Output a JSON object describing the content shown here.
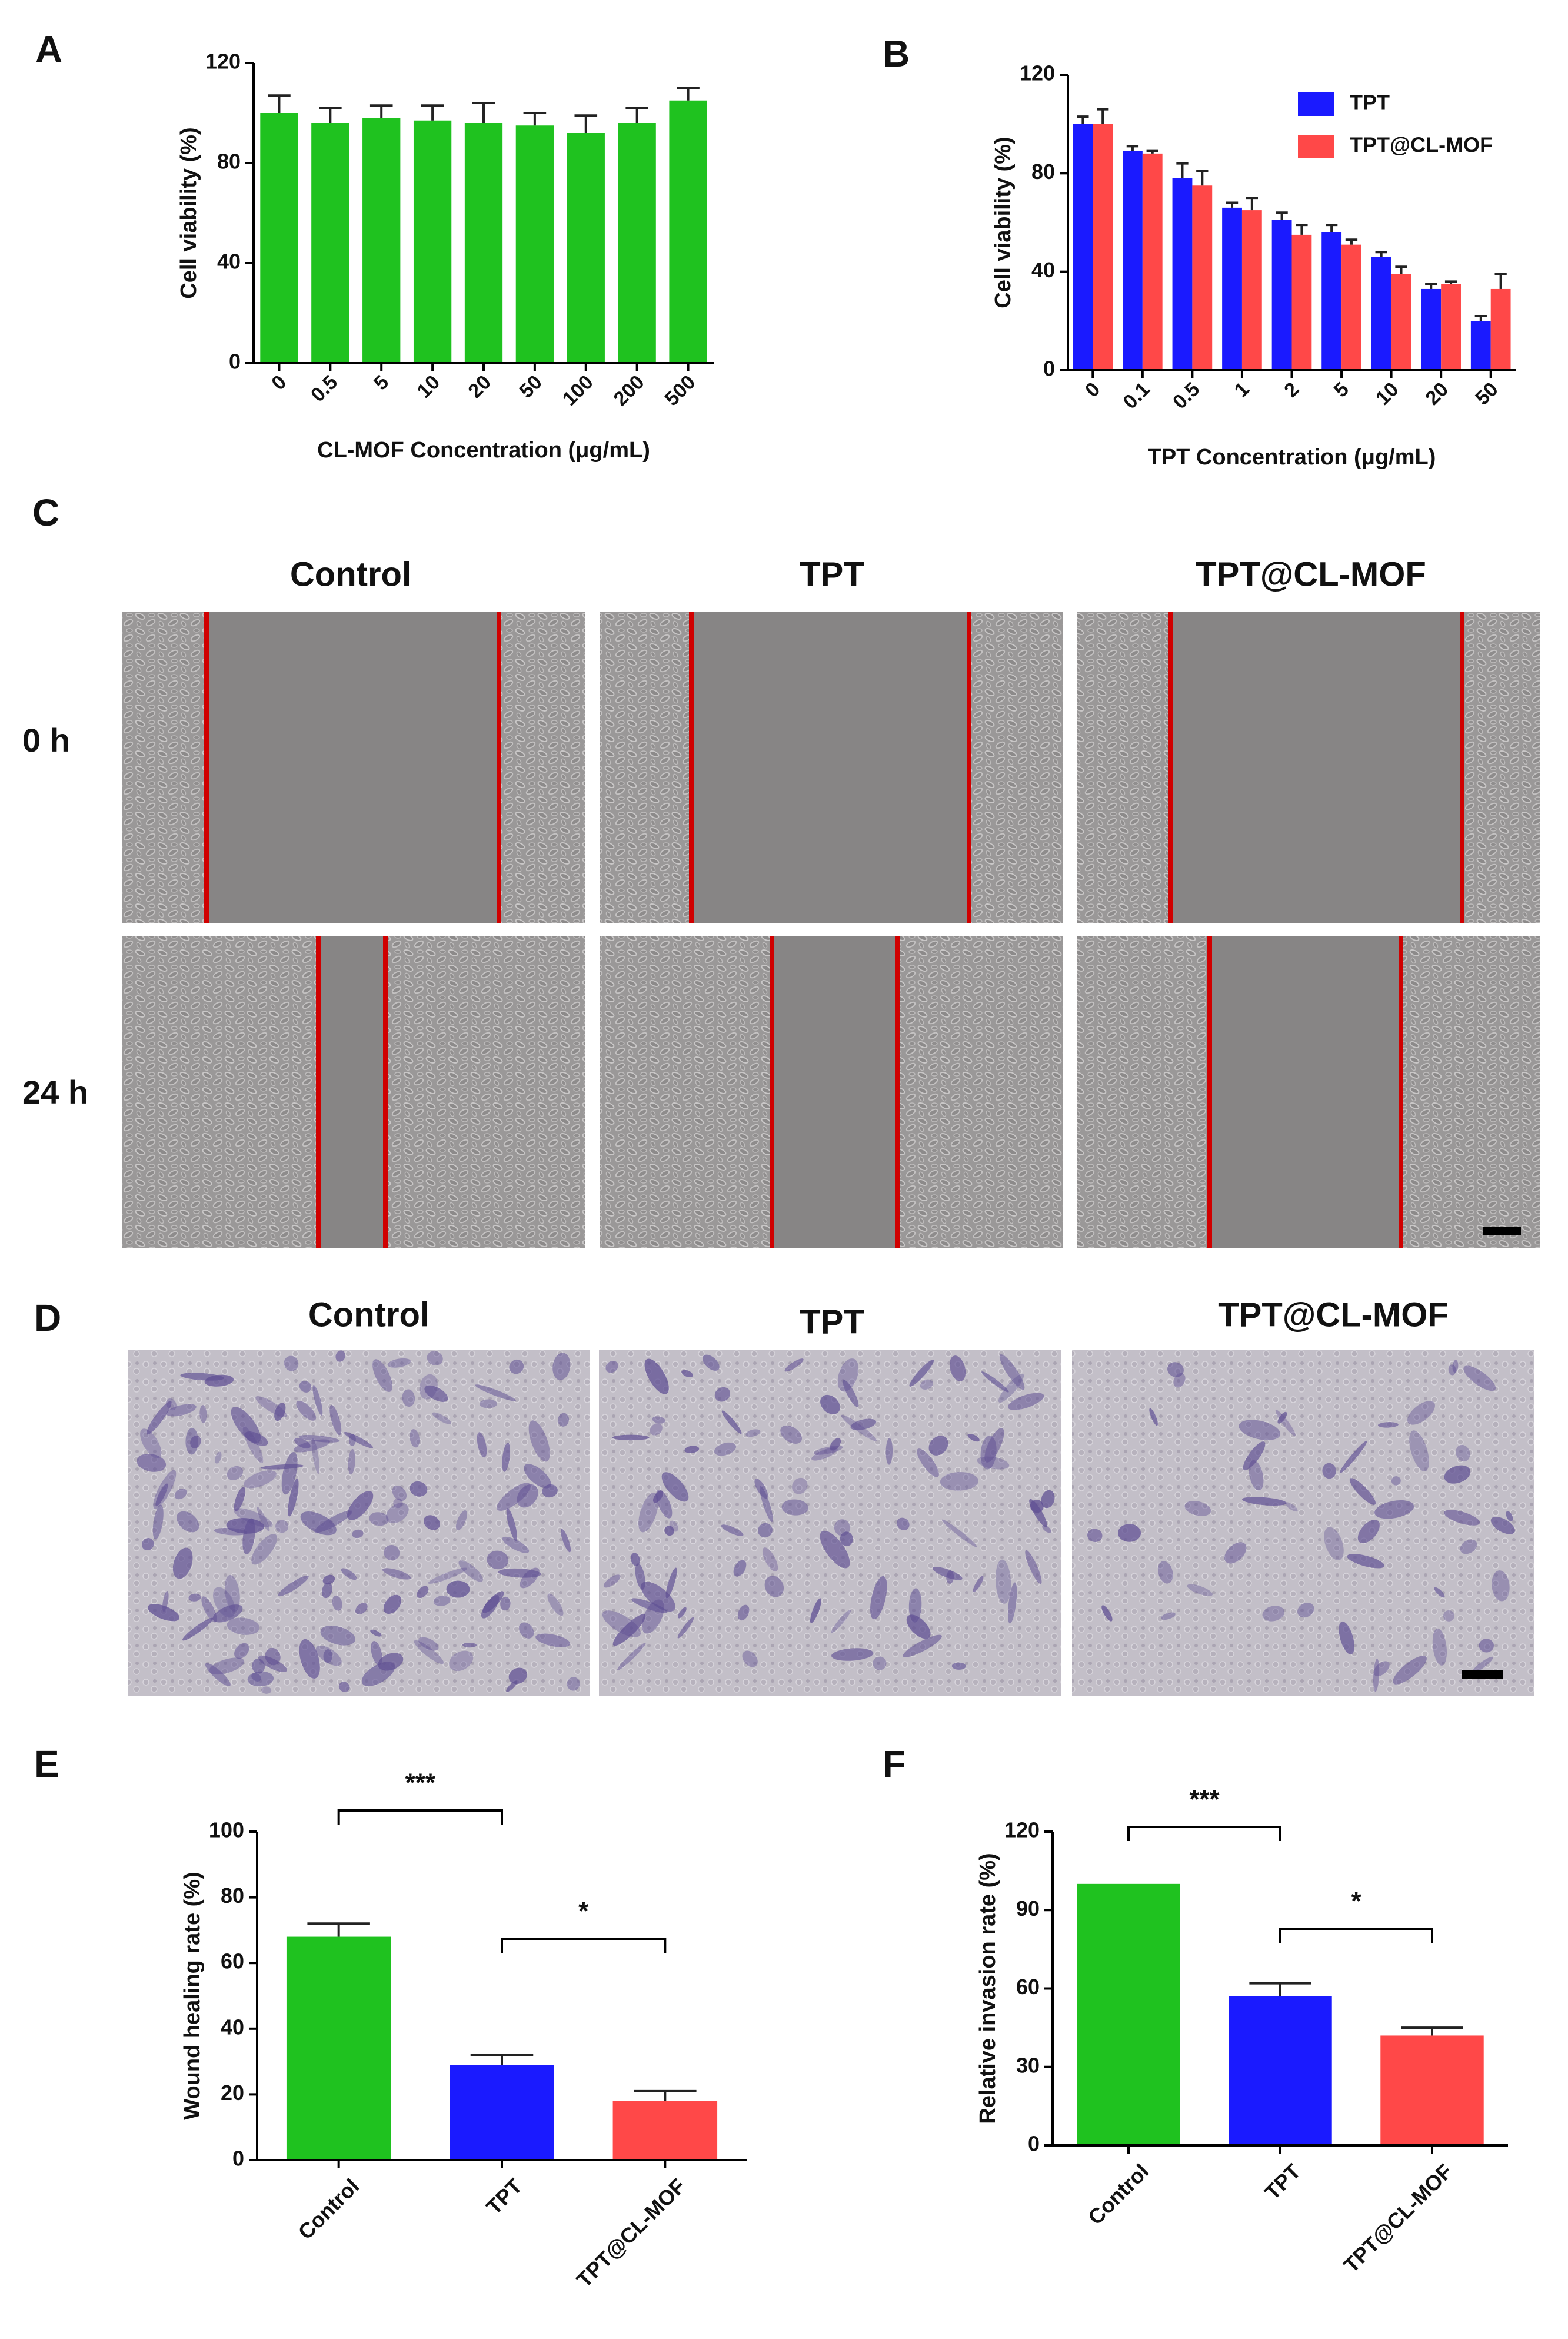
{
  "chart_data": [
    {
      "type": "bar",
      "label": "A",
      "x_label": "CL-MOF Concentration (μg/mL)",
      "y_label": "Cell viability (%)",
      "categories": [
        "0",
        "0.5",
        "5",
        "10",
        "20",
        "50",
        "100",
        "200",
        "500"
      ],
      "values": [
        100,
        96,
        98,
        97,
        96,
        95,
        92,
        96,
        105
      ],
      "errors": [
        7,
        6,
        5,
        6,
        8,
        5,
        7,
        6,
        5
      ],
      "color": "#1fc21f",
      "ylim": [
        0,
        120
      ],
      "yticks": [
        0,
        40,
        80,
        120
      ]
    },
    {
      "type": "bar",
      "label": "B",
      "x_label": "TPT Concentration (μg/mL)",
      "y_label": "Cell viability (%)",
      "categories": [
        "0",
        "0.1",
        "0.5",
        "1",
        "2",
        "5",
        "10",
        "20",
        "50"
      ],
      "series": [
        {
          "name": "TPT",
          "color": "#1a1aff",
          "values": [
            100,
            89,
            78,
            66,
            61,
            56,
            46,
            33,
            20
          ],
          "errors": [
            3,
            2,
            6,
            2,
            3,
            3,
            2,
            2,
            2
          ]
        },
        {
          "name": "TPT@CL-MOF",
          "color": "#ff4848",
          "values": [
            100,
            88,
            75,
            65,
            55,
            51,
            39,
            35,
            33
          ],
          "errors": [
            6,
            1,
            6,
            5,
            4,
            2,
            3,
            1,
            6
          ]
        }
      ],
      "legend": "upper right",
      "ylim": [
        0,
        120
      ],
      "yticks": [
        0,
        40,
        80,
        120
      ]
    },
    {
      "type": "bar",
      "label": "E",
      "y_label": "Wound healing rate (%)",
      "categories": [
        "Control",
        "TPT",
        "TPT@CL-MOF"
      ],
      "values": [
        68,
        29,
        18
      ],
      "errors": [
        4,
        3,
        3
      ],
      "colors": [
        "#1fc21f",
        "#1a1aff",
        "#ff4848"
      ],
      "ylim": [
        0,
        100
      ],
      "yticks": [
        0,
        20,
        40,
        60,
        80,
        100
      ],
      "annotations": [
        {
          "text": "***"
        },
        {
          "text": "*"
        }
      ]
    },
    {
      "type": "bar",
      "label": "F",
      "y_label": "Relative invasion rate (%)",
      "categories": [
        "Control",
        "TPT",
        "TPT@CL-MOF"
      ],
      "values": [
        100,
        57,
        42
      ],
      "errors": [
        0,
        5,
        3
      ],
      "colors": [
        "#1fc21f",
        "#1a1aff",
        "#ff4848"
      ],
      "ylim": [
        0,
        120
      ],
      "yticks": [
        0,
        30,
        60,
        90,
        120
      ],
      "annotations": [
        {
          "text": "***"
        },
        {
          "text": "*"
        }
      ]
    }
  ],
  "panel_c": {
    "label": "C",
    "columns": [
      "Control",
      "TPT",
      "TPT@CL-MOF"
    ],
    "rows": [
      "0 h",
      "24 h"
    ]
  },
  "panel_d": {
    "label": "D",
    "columns": [
      "Control",
      "TPT",
      "TPT@CL-MOF"
    ]
  }
}
